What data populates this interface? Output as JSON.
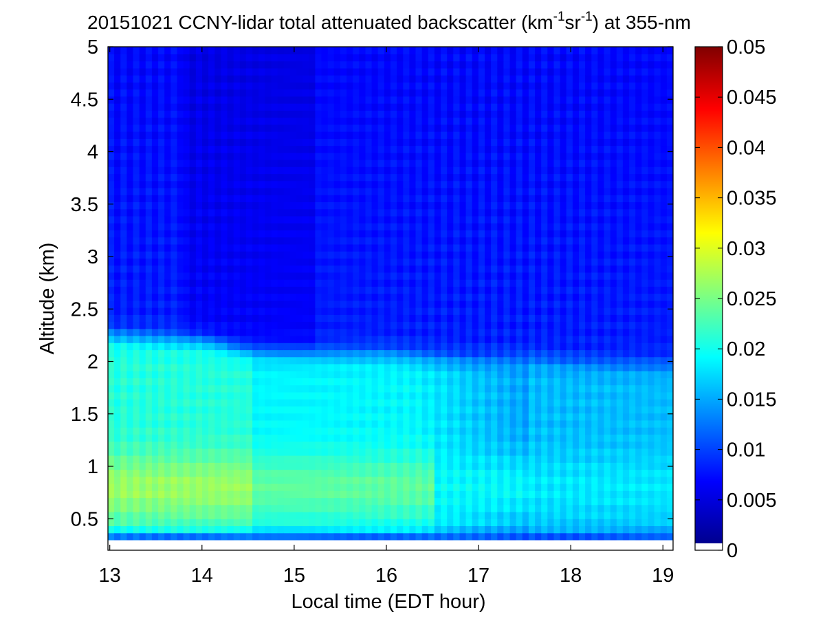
{
  "chart_data": {
    "type": "heatmap",
    "title": {
      "prefix": "20151021 CCNY-lidar total attenuated backscatter (km",
      "sup1": "-1",
      "middle": "sr",
      "sup2": "-1",
      "suffix": ") at 355-nm"
    },
    "xlabel": "Local time (EDT hour)",
    "ylabel": "Altitude (km)",
    "x_ticks": [
      "13",
      "14",
      "15",
      "16",
      "17",
      "18",
      "19"
    ],
    "y_ticks": [
      "0.5",
      "1",
      "1.5",
      "2",
      "2.5",
      "3",
      "3.5",
      "4",
      "4.5",
      "5"
    ],
    "xlim": [
      12.98,
      19.11
    ],
    "ylim": [
      0.2,
      5.0
    ],
    "data_xrange": [
      12.98,
      19.11
    ],
    "data_yrange": [
      0.3,
      5.0
    ],
    "colorbar": {
      "colormap": "jet",
      "range": [
        0,
        0.05
      ],
      "ticks": [
        "0",
        "0.005",
        "0.01",
        "0.015",
        "0.02",
        "0.025",
        "0.03",
        "0.035",
        "0.04",
        "0.045",
        "0.05"
      ]
    },
    "features": {
      "boundary_layer_top_km": [
        [
          13.0,
          2.25
        ],
        [
          13.5,
          2.22
        ],
        [
          14.0,
          2.2
        ],
        [
          14.5,
          2.1
        ],
        [
          15.0,
          2.08
        ],
        [
          15.5,
          2.08
        ],
        [
          16.0,
          2.08
        ],
        [
          16.5,
          2.04
        ],
        [
          17.0,
          2.02
        ],
        [
          17.5,
          2.04
        ],
        [
          18.0,
          2.0
        ],
        [
          18.5,
          1.98
        ],
        [
          19.0,
          1.97
        ]
      ],
      "aerosol_layer_peak_km": 0.8,
      "enhanced_layer_time_range": [
        13.0,
        14.55
      ],
      "signal_drop_time": 17.56,
      "low_bound_km": 0.3
    }
  }
}
